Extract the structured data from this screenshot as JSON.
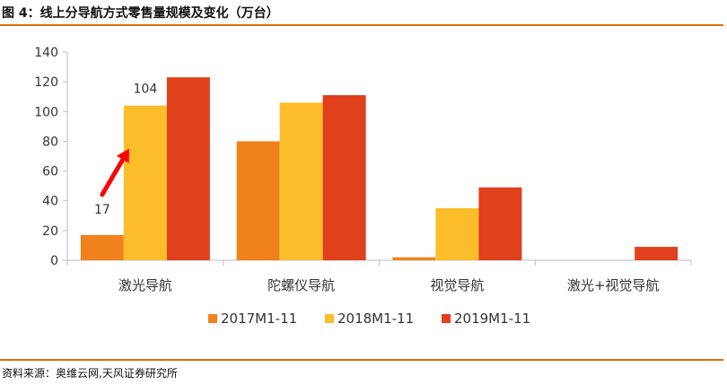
{
  "figure": {
    "title": "图 4：线上分导航方式零售量规模及变化（万台）",
    "source": "资料来源：奥维云网,天风证券研究所"
  },
  "colors": {
    "rule": "#e36c0a",
    "axis": "#bfbfbf",
    "arrow": "#ff0000"
  },
  "chart_data": {
    "type": "bar",
    "title": "图 4：线上分导航方式零售量规模及变化（万台）",
    "xlabel": "",
    "ylabel": "",
    "ylim": [
      0,
      140
    ],
    "yticks": [
      0,
      20,
      40,
      60,
      80,
      100,
      120,
      140
    ],
    "grid": false,
    "legend": "bottom",
    "categories": [
      "激光导航",
      "陀螺仪导航",
      "视觉导航",
      "激光+视觉导航"
    ],
    "series": [
      {
        "name": "2017M1-11",
        "color": "#f0821e",
        "values": [
          17,
          80,
          2,
          0
        ]
      },
      {
        "name": "2018M1-11",
        "color": "#fbbd2a",
        "values": [
          104,
          106,
          35,
          0
        ]
      },
      {
        "name": "2019M1-11",
        "color": "#e0401c",
        "values": [
          123,
          111,
          49,
          9
        ]
      }
    ],
    "data_labels": [
      {
        "series": 0,
        "category": 0,
        "text": "17"
      },
      {
        "series": 1,
        "category": 0,
        "text": "104"
      }
    ],
    "annotations": [
      {
        "type": "arrow",
        "from": {
          "series": 0,
          "category": 0
        },
        "to": {
          "series": 1,
          "category": 0
        }
      }
    ]
  }
}
